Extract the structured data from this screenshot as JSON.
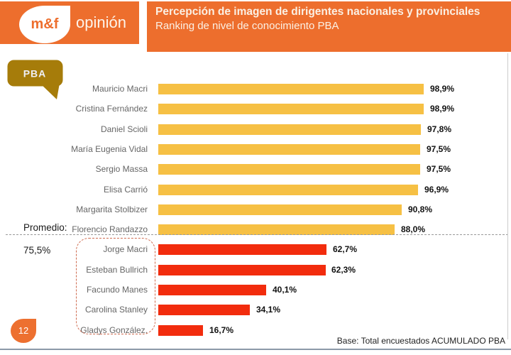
{
  "slide": {
    "page_number": "12"
  },
  "header": {
    "accent_color": "#ED6E2D",
    "logo_mark": "m&f",
    "logo_name": "opinión",
    "title": "Percepción de imagen de dirigentes nacionales y provinciales",
    "subtitle": "Ranking de nivel de conocimiento PBA"
  },
  "pba_badge": {
    "label": "PBA",
    "color": "#A67C0A"
  },
  "annotation": {
    "label": "Promedio:",
    "value": "75,5%"
  },
  "chart_data": {
    "type": "bar",
    "orientation": "horizontal",
    "title": "Ranking de nivel de conocimiento PBA",
    "categories": [
      "Mauricio Macri",
      "Cristina Fernández",
      "Daniel Scioli",
      "María Eugenia Vidal",
      "Sergio Massa",
      "Elisa Carrió",
      "Margarita Stolbizer",
      "Florencio Randazzo",
      "Jorge Macri",
      "Esteban Bullrich",
      "Facundo Manes",
      "Carolina Stanley",
      "Gladys González,"
    ],
    "values": [
      98.9,
      98.9,
      97.8,
      97.5,
      97.5,
      96.9,
      90.8,
      88.0,
      62.7,
      62.3,
      40.1,
      34.1,
      16.7
    ],
    "value_labels": [
      "98,9%",
      "98,9%",
      "97,8%",
      "97,5%",
      "97,5%",
      "96,9%",
      "90,8%",
      "88,0%",
      "62,7%",
      "62,3%",
      "40,1%",
      "34,1%",
      "16,7%"
    ],
    "group_split_index": 8,
    "colors": {
      "primary": "#F6C044",
      "highlight": "#F22C0D"
    },
    "xlim": [
      0,
      100
    ],
    "average": 75.5,
    "average_label": "Promedio: 75,5%",
    "grid": false,
    "legend": false
  },
  "footer": {
    "base_note": "Base: Total encuestados ACUMULADO PBA"
  }
}
